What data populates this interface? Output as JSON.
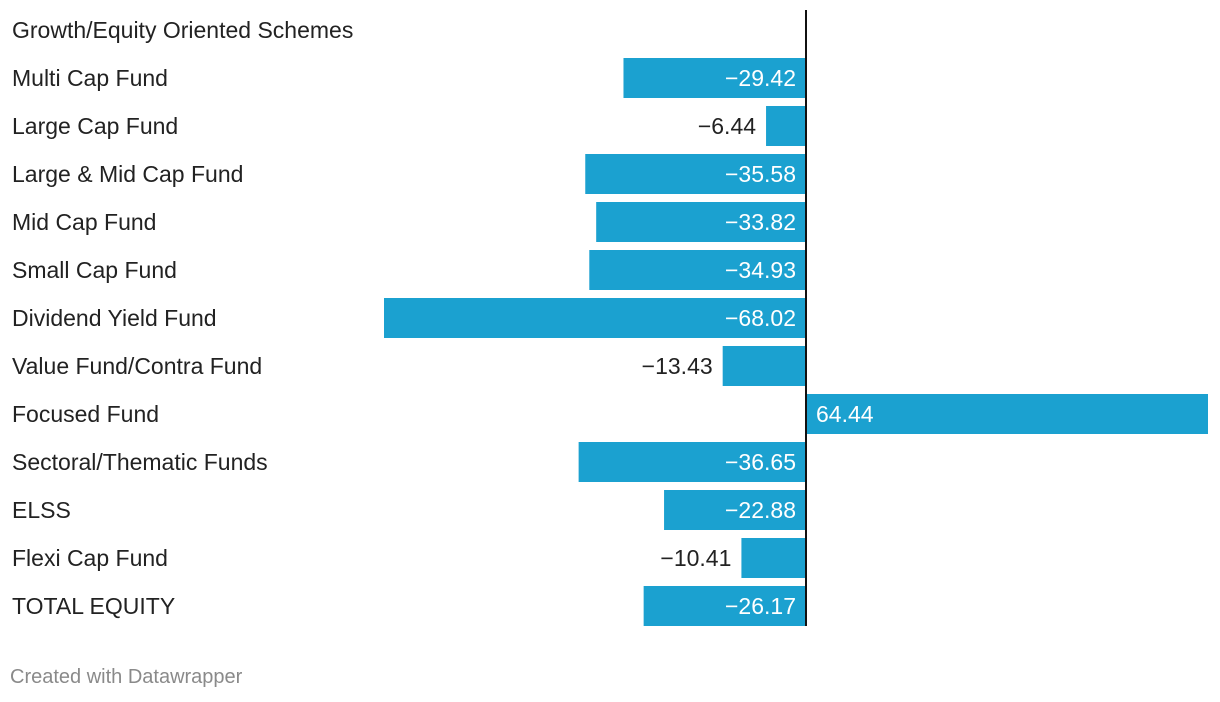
{
  "chart_data": {
    "type": "bar",
    "orientation": "horizontal",
    "header_label": "Growth/Equity Oriented Schemes",
    "categories": [
      "Multi Cap Fund",
      "Large Cap Fund",
      "Large & Mid Cap Fund",
      "Mid Cap Fund",
      "Small Cap Fund",
      "Dividend Yield Fund",
      "Value Fund/Contra Fund",
      "Focused Fund",
      "Sectoral/Thematic Funds",
      "ELSS",
      "Flexi Cap Fund",
      "TOTAL EQUITY"
    ],
    "values": [
      -29.42,
      -6.44,
      -35.58,
      -33.82,
      -34.93,
      -68.02,
      -13.43,
      64.44,
      -36.65,
      -22.88,
      -10.41,
      -26.17
    ],
    "value_labels": [
      "−29.42",
      "−6.44",
      "−35.58",
      "−33.82",
      "−34.93",
      "−68.02",
      "−13.43",
      "64.44",
      "−36.65",
      "−22.88",
      "−10.41",
      "−26.17"
    ],
    "xlim": [
      -68.02,
      64.44
    ],
    "bar_color": "#1ba1d0",
    "grid": false
  },
  "footer": {
    "credit": "Created with Datawrapper"
  }
}
